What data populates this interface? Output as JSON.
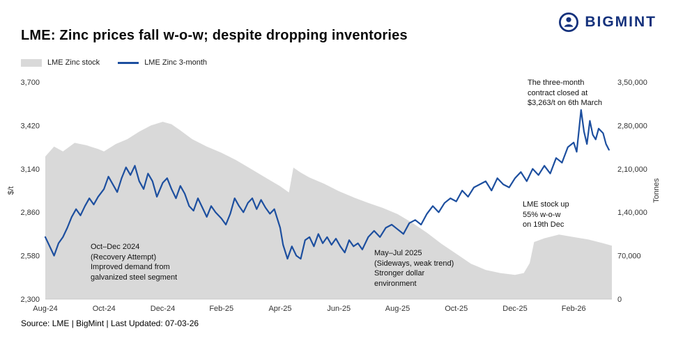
{
  "brand": {
    "name": "BIGMINT"
  },
  "title": "LME: Zinc prices fall w-o-w; despite dropping inventories",
  "legend": [
    {
      "label": "LME Zinc stock"
    },
    {
      "label": "LME Zinc 3-month"
    }
  ],
  "source_line": "Source: LME | BigMint | Last Updated: 07-03-26",
  "chart_data": {
    "type": "line+area",
    "title": "LME: Zinc prices fall w-o-w; despite dropping inventories",
    "x_unit": "months since Aug-2024",
    "x_range": [
      0,
      19.3
    ],
    "x_axis": {
      "ticks": [
        {
          "value": 0,
          "label": "Aug-24"
        },
        {
          "value": 2,
          "label": "Oct-24"
        },
        {
          "value": 4,
          "label": "Dec-24"
        },
        {
          "value": 6,
          "label": "Feb-25"
        },
        {
          "value": 8,
          "label": "Apr-25"
        },
        {
          "value": 10,
          "label": "Jun-25"
        },
        {
          "value": 12,
          "label": "Aug-25"
        },
        {
          "value": 14,
          "label": "Oct-25"
        },
        {
          "value": 16,
          "label": "Dec-25"
        },
        {
          "value": 18,
          "label": "Feb-26"
        }
      ]
    },
    "price_axis": {
      "label": "$/t",
      "min": 2300,
      "max": 3700,
      "ticks": [
        {
          "value": 3700,
          "label": "3,700"
        },
        {
          "value": 3420,
          "label": "3,420"
        },
        {
          "value": 3140,
          "label": "3,140"
        },
        {
          "value": 2860,
          "label": "2,860"
        },
        {
          "value": 2580,
          "label": "2,580"
        },
        {
          "value": 2300,
          "label": "2,300"
        }
      ]
    },
    "stock_axis": {
      "label": "Tonnes",
      "min": 0,
      "max": 350000,
      "ticks": [
        {
          "value": 350000,
          "label": "3,50,000"
        },
        {
          "value": 280000,
          "label": "2,80,000"
        },
        {
          "value": 210000,
          "label": "2,10,000"
        },
        {
          "value": 140000,
          "label": "1,40,000"
        },
        {
          "value": 70000,
          "label": "70,000"
        },
        {
          "value": 0,
          "label": "0"
        }
      ]
    },
    "series": [
      {
        "name": "LME Zinc stock",
        "type": "area",
        "axis": "stock",
        "color": "#d9d9d9",
        "points": [
          [
            0,
            230000
          ],
          [
            0.3,
            246000
          ],
          [
            0.6,
            238000
          ],
          [
            1.0,
            252000
          ],
          [
            1.4,
            248000
          ],
          [
            1.8,
            242000
          ],
          [
            2.0,
            238000
          ],
          [
            2.4,
            250000
          ],
          [
            2.8,
            258000
          ],
          [
            3.2,
            270000
          ],
          [
            3.6,
            280000
          ],
          [
            4.0,
            286000
          ],
          [
            4.3,
            282000
          ],
          [
            4.6,
            272000
          ],
          [
            5.0,
            258000
          ],
          [
            5.5,
            246000
          ],
          [
            6.0,
            236000
          ],
          [
            6.5,
            224000
          ],
          [
            7.0,
            210000
          ],
          [
            7.5,
            196000
          ],
          [
            8.0,
            182000
          ],
          [
            8.3,
            172000
          ],
          [
            8.45,
            212000
          ],
          [
            8.7,
            204000
          ],
          [
            9.0,
            196000
          ],
          [
            9.5,
            186000
          ],
          [
            10.0,
            174000
          ],
          [
            10.5,
            164000
          ],
          [
            11.0,
            155000
          ],
          [
            11.5,
            147000
          ],
          [
            12.0,
            137000
          ],
          [
            12.5,
            123000
          ],
          [
            13.0,
            107000
          ],
          [
            13.5,
            89000
          ],
          [
            14.0,
            73000
          ],
          [
            14.5,
            57000
          ],
          [
            15.0,
            47000
          ],
          [
            15.5,
            42000
          ],
          [
            16.0,
            39000
          ],
          [
            16.3,
            42000
          ],
          [
            16.5,
            58000
          ],
          [
            16.65,
            92000
          ],
          [
            17.0,
            98000
          ],
          [
            17.5,
            104000
          ],
          [
            18.0,
            100000
          ],
          [
            18.5,
            96000
          ],
          [
            19.0,
            90000
          ],
          [
            19.3,
            86000
          ]
        ]
      },
      {
        "name": "LME Zinc 3-month",
        "type": "line",
        "axis": "price",
        "color": "#1d4f9f",
        "points": [
          [
            0,
            2700
          ],
          [
            0.15,
            2640
          ],
          [
            0.3,
            2580
          ],
          [
            0.45,
            2660
          ],
          [
            0.6,
            2700
          ],
          [
            0.75,
            2760
          ],
          [
            0.9,
            2830
          ],
          [
            1.05,
            2880
          ],
          [
            1.2,
            2840
          ],
          [
            1.35,
            2900
          ],
          [
            1.5,
            2950
          ],
          [
            1.65,
            2910
          ],
          [
            1.8,
            2960
          ],
          [
            2.0,
            3010
          ],
          [
            2.15,
            3090
          ],
          [
            2.3,
            3040
          ],
          [
            2.45,
            2990
          ],
          [
            2.6,
            3080
          ],
          [
            2.75,
            3150
          ],
          [
            2.9,
            3100
          ],
          [
            3.05,
            3160
          ],
          [
            3.2,
            3060
          ],
          [
            3.35,
            3010
          ],
          [
            3.5,
            3110
          ],
          [
            3.65,
            3060
          ],
          [
            3.8,
            2960
          ],
          [
            4.0,
            3050
          ],
          [
            4.15,
            3080
          ],
          [
            4.3,
            3010
          ],
          [
            4.45,
            2950
          ],
          [
            4.6,
            3030
          ],
          [
            4.75,
            2980
          ],
          [
            4.9,
            2900
          ],
          [
            5.05,
            2870
          ],
          [
            5.2,
            2950
          ],
          [
            5.35,
            2890
          ],
          [
            5.5,
            2830
          ],
          [
            5.65,
            2900
          ],
          [
            5.8,
            2860
          ],
          [
            6.0,
            2820
          ],
          [
            6.15,
            2780
          ],
          [
            6.3,
            2850
          ],
          [
            6.45,
            2950
          ],
          [
            6.6,
            2900
          ],
          [
            6.75,
            2860
          ],
          [
            6.9,
            2920
          ],
          [
            7.05,
            2950
          ],
          [
            7.2,
            2880
          ],
          [
            7.35,
            2940
          ],
          [
            7.5,
            2890
          ],
          [
            7.65,
            2850
          ],
          [
            7.8,
            2880
          ],
          [
            8.0,
            2760
          ],
          [
            8.1,
            2650
          ],
          [
            8.25,
            2560
          ],
          [
            8.4,
            2640
          ],
          [
            8.55,
            2580
          ],
          [
            8.7,
            2560
          ],
          [
            8.85,
            2680
          ],
          [
            9.0,
            2700
          ],
          [
            9.15,
            2640
          ],
          [
            9.3,
            2720
          ],
          [
            9.45,
            2660
          ],
          [
            9.6,
            2700
          ],
          [
            9.75,
            2650
          ],
          [
            9.9,
            2690
          ],
          [
            10.05,
            2640
          ],
          [
            10.2,
            2600
          ],
          [
            10.35,
            2680
          ],
          [
            10.5,
            2640
          ],
          [
            10.65,
            2660
          ],
          [
            10.8,
            2620
          ],
          [
            11.0,
            2700
          ],
          [
            11.2,
            2740
          ],
          [
            11.4,
            2700
          ],
          [
            11.6,
            2760
          ],
          [
            11.8,
            2780
          ],
          [
            12.0,
            2750
          ],
          [
            12.2,
            2720
          ],
          [
            12.4,
            2790
          ],
          [
            12.6,
            2810
          ],
          [
            12.8,
            2780
          ],
          [
            13.0,
            2850
          ],
          [
            13.2,
            2900
          ],
          [
            13.4,
            2860
          ],
          [
            13.6,
            2920
          ],
          [
            13.8,
            2950
          ],
          [
            14.0,
            2930
          ],
          [
            14.2,
            3000
          ],
          [
            14.4,
            2960
          ],
          [
            14.6,
            3020
          ],
          [
            14.8,
            3040
          ],
          [
            15.0,
            3060
          ],
          [
            15.2,
            3000
          ],
          [
            15.4,
            3080
          ],
          [
            15.6,
            3040
          ],
          [
            15.8,
            3020
          ],
          [
            16.0,
            3080
          ],
          [
            16.2,
            3120
          ],
          [
            16.4,
            3060
          ],
          [
            16.6,
            3140
          ],
          [
            16.8,
            3100
          ],
          [
            17.0,
            3160
          ],
          [
            17.2,
            3110
          ],
          [
            17.4,
            3210
          ],
          [
            17.6,
            3180
          ],
          [
            17.8,
            3280
          ],
          [
            18.0,
            3310
          ],
          [
            18.1,
            3250
          ],
          [
            18.25,
            3520
          ],
          [
            18.35,
            3380
          ],
          [
            18.45,
            3300
          ],
          [
            18.55,
            3450
          ],
          [
            18.65,
            3360
          ],
          [
            18.75,
            3330
          ],
          [
            18.85,
            3400
          ],
          [
            19.0,
            3370
          ],
          [
            19.1,
            3300
          ],
          [
            19.2,
            3263
          ]
        ]
      }
    ],
    "annotations": [
      {
        "id": "contract-close",
        "text": "The three-month\ncontract closed at\n$3,263/t on 6th March"
      },
      {
        "id": "recovery-attempt",
        "text": "Oct–Dec 2024\n(Recovery Attempt)\nImproved demand from\ngalvanized steel segment"
      },
      {
        "id": "sideways-trend",
        "text": "May–Jul 2025\n(Sideways, weak trend)\nStronger dollar\nenvironment"
      },
      {
        "id": "stock-up",
        "text": "LME stock up\n55% w-o-w\non 19th Dec"
      }
    ],
    "legend_position": "top-left",
    "grid": false
  }
}
